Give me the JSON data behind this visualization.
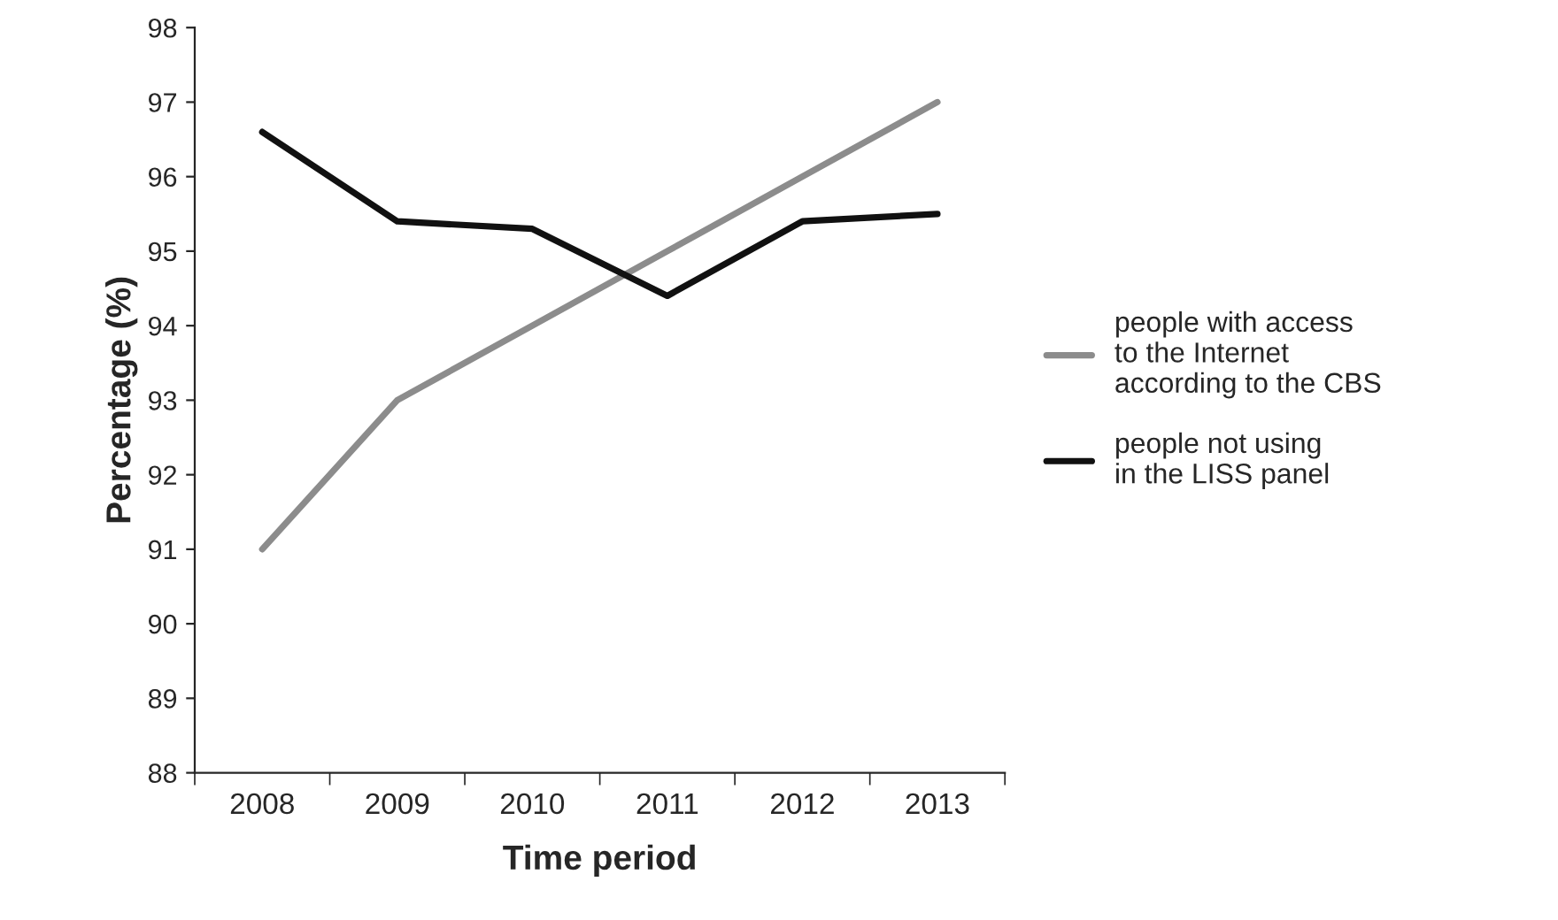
{
  "chart_data": {
    "type": "line",
    "xlabel": "Time period",
    "ylabel": "Percentage (%)",
    "categories": [
      "2008",
      "2009",
      "2010",
      "2011",
      "2012",
      "2013"
    ],
    "series": [
      {
        "name": "people with access\nto the Internet\naccording to the CBS",
        "color": "#8c8c8c",
        "values": [
          91,
          93,
          94,
          95,
          96,
          97
        ]
      },
      {
        "name": "people not using\nin the LISS panel",
        "color": "#111111",
        "values": [
          96.6,
          95.4,
          95.3,
          94.4,
          95.4,
          95.5
        ]
      }
    ],
    "ylim": [
      88,
      98
    ],
    "yticks": [
      88,
      89,
      90,
      91,
      92,
      93,
      94,
      95,
      96,
      97,
      98
    ],
    "grid": false,
    "legend": "right",
    "marker": "none",
    "line_style": "solid"
  }
}
